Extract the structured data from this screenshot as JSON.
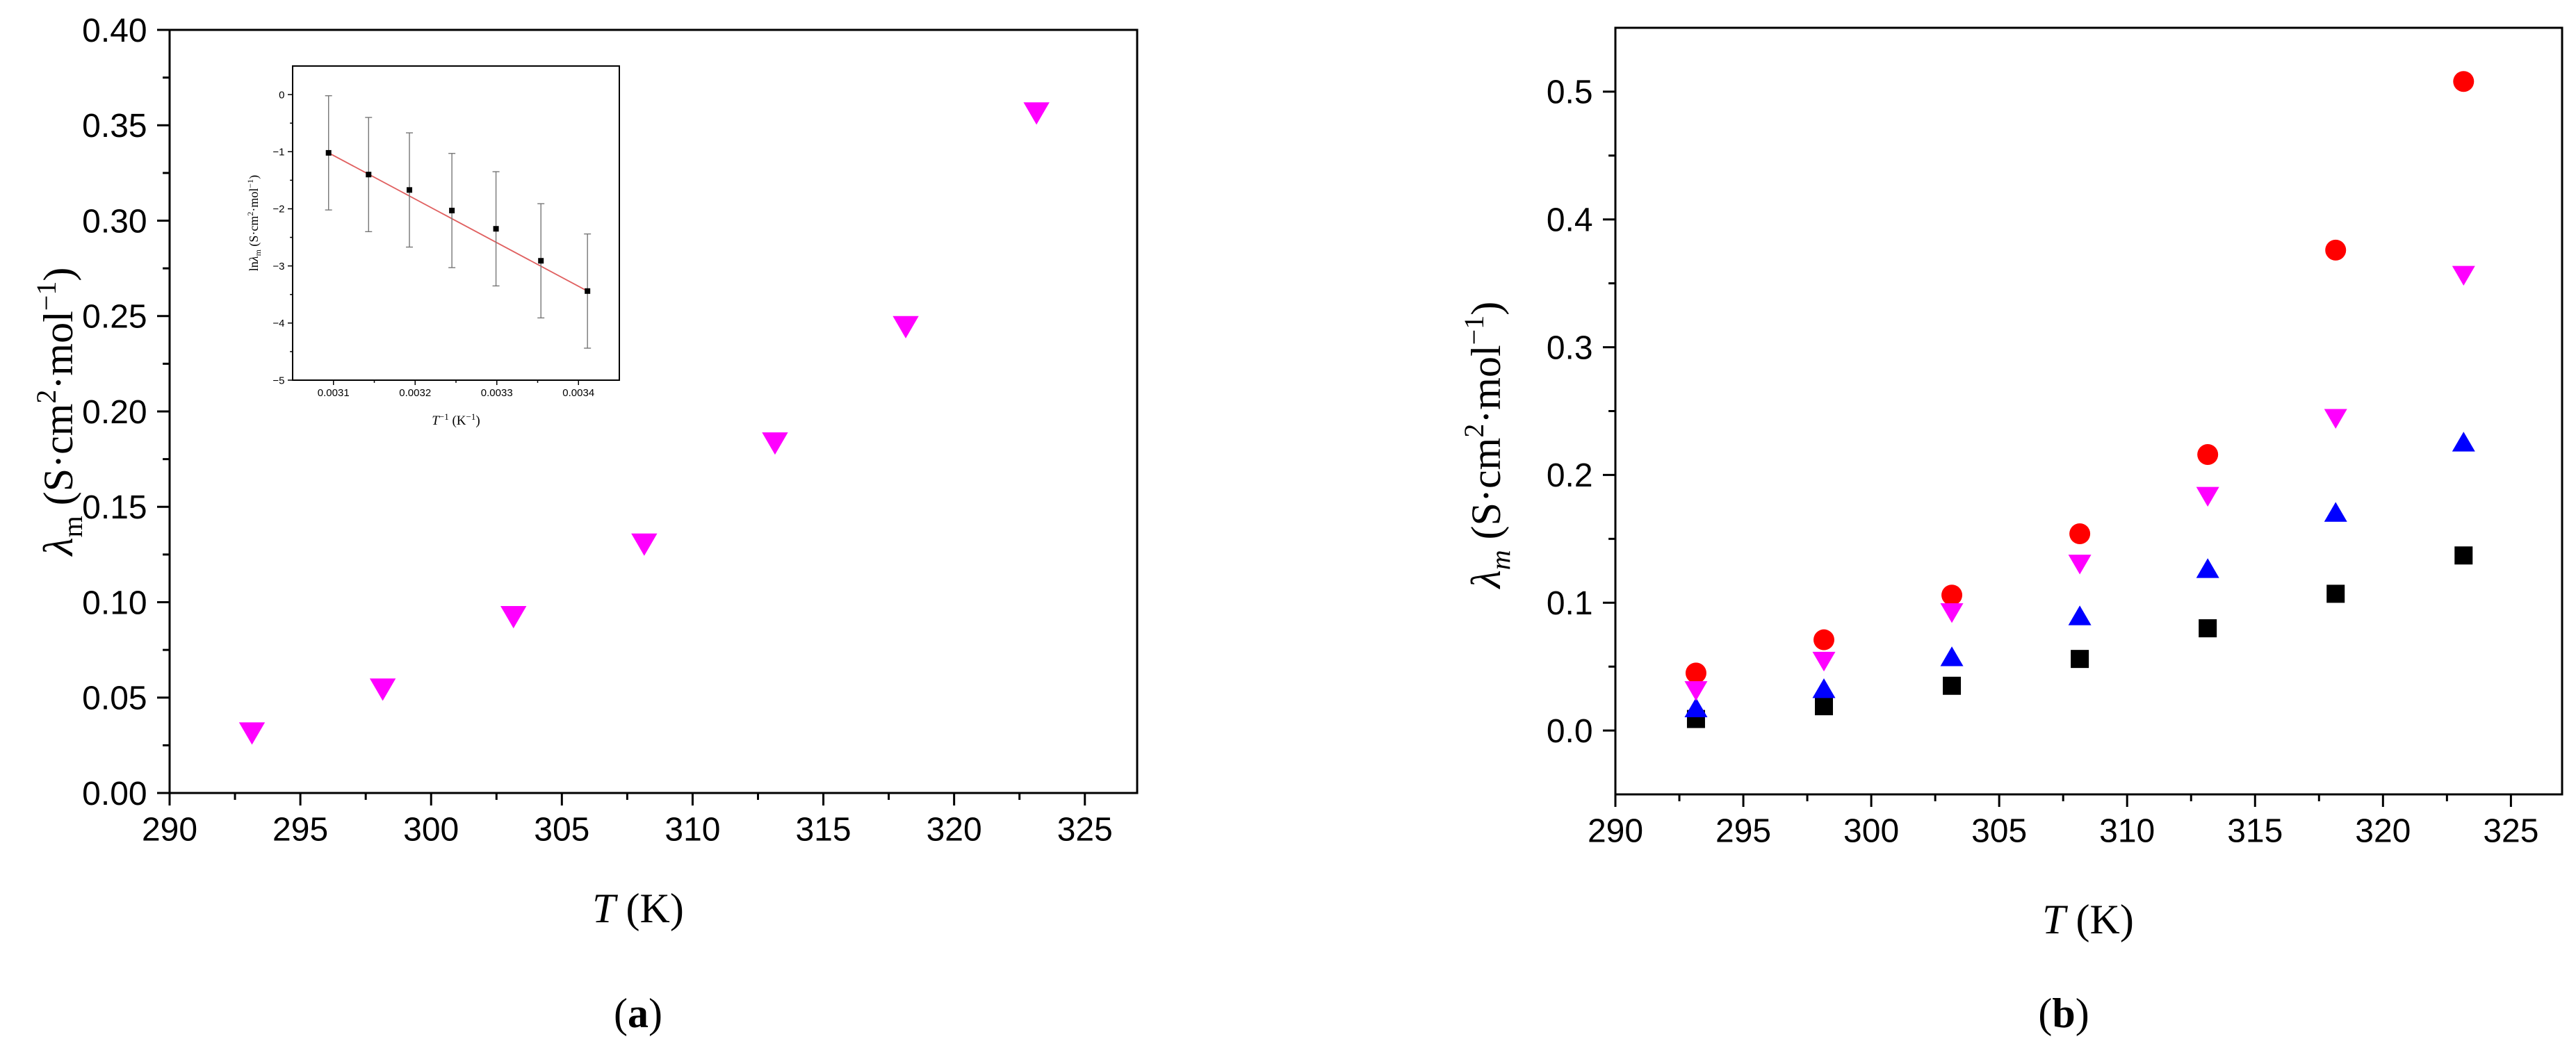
{
  "panels": [
    {
      "label": "a",
      "label_open": "(",
      "label_close": ")",
      "chart_data": {
        "type": "scatter",
        "xlabel_symbol": "T",
        "xlabel_unit": " (K)",
        "ylabel_symbol": "λ",
        "ylabel_sub": "m",
        "ylabel_unit_main": " (S·cm",
        "ylabel_unit_sup1": "2",
        "ylabel_unit_mid": "·mol",
        "ylabel_unit_sup2": "−1",
        "ylabel_unit_end": ")",
        "xlim": [
          290,
          327
        ],
        "ylim": [
          0,
          0.4
        ],
        "xticks": [
          "290",
          "295",
          "300",
          "305",
          "310",
          "315",
          "320",
          "325"
        ],
        "xtick_values": [
          290,
          295,
          300,
          305,
          310,
          315,
          320,
          325
        ],
        "yticks": [
          "0.00",
          "0.05",
          "0.10",
          "0.15",
          "0.20",
          "0.25",
          "0.30",
          "0.35",
          "0.40"
        ],
        "ytick_values": [
          0,
          0.05,
          0.1,
          0.15,
          0.2,
          0.25,
          0.3,
          0.35,
          0.4
        ],
        "grid": false,
        "series": [
          {
            "marker": "triangle-down",
            "color": "#ff00ff",
            "x": [
              293.15,
              298.15,
              303.15,
              308.15,
              313.15,
              318.15,
              323.15
            ],
            "y": [
              0.032,
              0.055,
              0.093,
              0.131,
              0.184,
              0.245,
              0.357
            ]
          }
        ],
        "inset": {
          "type": "scatter",
          "xlabel_symbol": "T",
          "xlabel_sup": "−1",
          "xlabel_unit": " (K",
          "xlabel_unit_sup": "−1",
          "xlabel_unit_end": ")",
          "ylabel_main": "ln",
          "ylabel_symbol": "λ",
          "ylabel_sub": "m",
          "ylabel_unit": " (S·cm",
          "ylabel_unit_sup1": "2",
          "ylabel_unit_mid": "·mol",
          "ylabel_unit_sup2": "−1",
          "ylabel_unit_end": ")",
          "xlim": [
            0.00305,
            0.00345
          ],
          "ylim": [
            -5,
            0.5
          ],
          "xticks": [
            "0.0031",
            "0.0032",
            "0.0033",
            "0.0034"
          ],
          "xtick_values": [
            0.0031,
            0.0032,
            0.0033,
            0.0034
          ],
          "yticks": [
            "0",
            "−1",
            "−2",
            "−3",
            "−4",
            "−5"
          ],
          "ytick_values": [
            0,
            -1,
            -2,
            -3,
            -4,
            -5
          ],
          "marker_color": "#000000",
          "fit_color": "#e06060",
          "x": [
            0.003094,
            0.003143,
            0.003193,
            0.003245,
            0.003299,
            0.003354,
            0.003411
          ],
          "y": [
            -1.02,
            -1.4,
            -1.67,
            -2.03,
            -2.35,
            -2.91,
            -3.44
          ],
          "yerr": [
            1.0,
            1.0,
            1.0,
            1.0,
            1.0,
            1.0,
            1.0
          ],
          "fit": {
            "x": [
              0.003094,
              0.003411
            ],
            "y": [
              -1.02,
              -3.44
            ]
          }
        }
      }
    },
    {
      "label": "b",
      "label_open": "(",
      "label_close": ")",
      "chart_data": {
        "type": "scatter",
        "xlabel_symbol": "T",
        "xlabel_unit": " (K)",
        "ylabel_symbol": "λ",
        "ylabel_sub": "m",
        "ylabel_unit_main": " (S·cm",
        "ylabel_unit_sup1": "2",
        "ylabel_unit_mid": "·mol",
        "ylabel_unit_sup2": "−1",
        "ylabel_unit_end": ")",
        "xlim": [
          290,
          327
        ],
        "ylim": [
          -0.05,
          0.55
        ],
        "xticks": [
          "290",
          "295",
          "300",
          "305",
          "310",
          "315",
          "320",
          "325"
        ],
        "xtick_values": [
          290,
          295,
          300,
          305,
          310,
          315,
          320,
          325
        ],
        "yticks": [
          "0.0",
          "0.1",
          "0.2",
          "0.3",
          "0.4",
          "0.5"
        ],
        "ytick_values": [
          0,
          0.1,
          0.2,
          0.3,
          0.4,
          0.5
        ],
        "grid": false,
        "series": [
          {
            "marker": "square",
            "color": "#000000",
            "x": [
              293.15,
              298.15,
              303.15,
              308.15,
              313.15,
              318.15,
              323.15
            ],
            "y": [
              0.009,
              0.019,
              0.035,
              0.056,
              0.08,
              0.107,
              0.137
            ]
          },
          {
            "marker": "circle",
            "color": "#ff0000",
            "x": [
              293.15,
              298.15,
              303.15,
              308.15,
              313.15,
              318.15,
              323.15
            ],
            "y": [
              0.045,
              0.071,
              0.106,
              0.154,
              0.216,
              0.376,
              0.508
            ]
          },
          {
            "marker": "triangle-up",
            "color": "#0000ff",
            "x": [
              293.15,
              298.15,
              303.15,
              308.15,
              313.15,
              318.15,
              323.15
            ],
            "y": [
              0.017,
              0.032,
              0.057,
              0.089,
              0.126,
              0.17,
              0.225
            ]
          },
          {
            "marker": "triangle-down",
            "color": "#ff00ff",
            "x": [
              293.15,
              298.15,
              303.15,
              308.15,
              313.15,
              318.15,
              323.15
            ],
            "y": [
              0.032,
              0.055,
              0.093,
              0.131,
              0.184,
              0.245,
              0.357
            ]
          }
        ]
      }
    }
  ]
}
